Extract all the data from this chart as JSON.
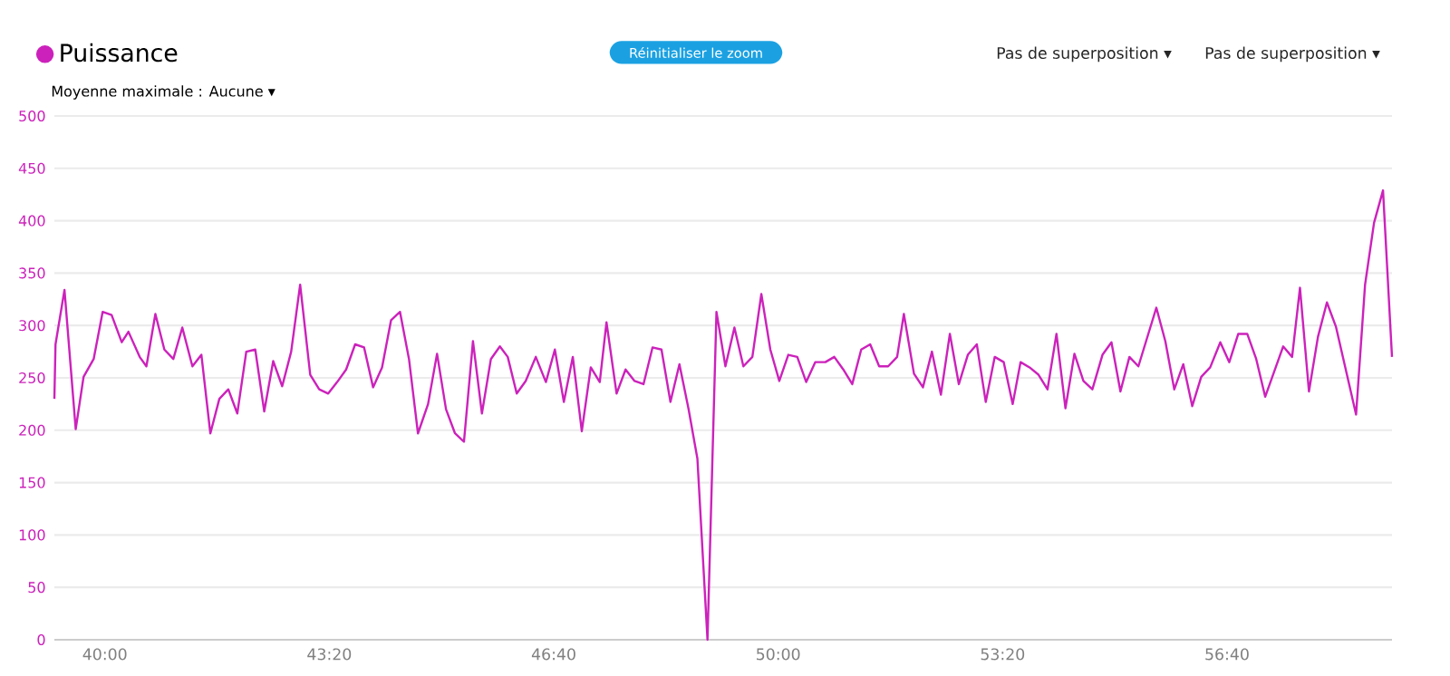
{
  "chart_data": {
    "type": "line",
    "legend": "top left",
    "grid": "y",
    "marker": "none",
    "line_style": "solid",
    "annotations": [
      "Réinitialiser le zoom",
      "Pas de superposition ▾",
      "Pas de superposition ▾",
      "Moyenne maximale : Aucune ▾"
    ],
    "xlim": [
      2355,
      3547
    ],
    "ylim": [
      0,
      500
    ],
    "xticks": [
      {
        "value": 2400,
        "label": "40:00"
      },
      {
        "value": 2600,
        "label": "43:20"
      },
      {
        "value": 2800,
        "label": "46:40"
      },
      {
        "value": 3000,
        "label": "50:00"
      },
      {
        "value": 3200,
        "label": "53:20"
      },
      {
        "value": 3400,
        "label": "56:40"
      }
    ],
    "yticks": [
      0,
      50,
      100,
      150,
      200,
      250,
      300,
      350,
      400,
      450,
      500
    ],
    "series": [
      {
        "name": "Puissance",
        "color": "#cc22bb",
        "x": [
          2355,
          2356,
          2364,
          2374,
          2381,
          2390,
          2398,
          2406,
          2415,
          2421,
          2431,
          2437,
          2445,
          2453,
          2461,
          2469,
          2478,
          2486,
          2494,
          2502,
          2510,
          2518,
          2526,
          2534,
          2542,
          2550,
          2558,
          2566,
          2574,
          2583,
          2591,
          2599,
          2607,
          2615,
          2623,
          2631,
          2639,
          2647,
          2655,
          2663,
          2671,
          2679,
          2688,
          2696,
          2704,
          2712,
          2720,
          2728,
          2736,
          2744,
          2752,
          2759,
          2767,
          2775,
          2784,
          2793,
          2801,
          2809,
          2817,
          2825,
          2833,
          2841,
          2847,
          2856,
          2864,
          2872,
          2880,
          2888,
          2896,
          2904,
          2912,
          2920,
          2928,
          2937,
          2945,
          2953,
          2961,
          2969,
          2977,
          2985,
          2993,
          3001,
          3009,
          3017,
          3025,
          3033,
          3042,
          3050,
          3058,
          3066,
          3074,
          3082,
          3090,
          3098,
          3106,
          3112,
          3121,
          3129,
          3137,
          3145,
          3153,
          3161,
          3169,
          3177,
          3185,
          3193,
          3201,
          3209,
          3216,
          3224,
          3232,
          3240,
          3248,
          3256,
          3264,
          3272,
          3280,
          3289,
          3297,
          3305,
          3313,
          3321,
          3337,
          3345,
          3353,
          3361,
          3369,
          3377,
          3385,
          3394,
          3402,
          3410,
          3418,
          3426,
          3434,
          3442,
          3450,
          3458,
          3465,
          3473,
          3481,
          3489,
          3497,
          3515,
          3523,
          3531,
          3539,
          3547
        ],
        "values": [
          230,
          282,
          334,
          201,
          251,
          268,
          313,
          310,
          284,
          294,
          270,
          261,
          311,
          277,
          268,
          298,
          261,
          272,
          197,
          230,
          239,
          216,
          275,
          277,
          218,
          266,
          242,
          275,
          339,
          253,
          239,
          235,
          246,
          258,
          282,
          279,
          241,
          260,
          305,
          313,
          268,
          197,
          225,
          273,
          220,
          197,
          189,
          285,
          216,
          268,
          280,
          270,
          235,
          247,
          270,
          246,
          277,
          227,
          270,
          199,
          260,
          246,
          303,
          235,
          258,
          247,
          244,
          279,
          277,
          227,
          263,
          221,
          173,
          0,
          313,
          261,
          298,
          261,
          270,
          330,
          277,
          247,
          272,
          270,
          246,
          265,
          265,
          270,
          258,
          244,
          277,
          282,
          261,
          261,
          270,
          311,
          254,
          241,
          275,
          234,
          292,
          244,
          272,
          282,
          227,
          270,
          265,
          225,
          265,
          260,
          253,
          239,
          292,
          221,
          273,
          247,
          239,
          272,
          284,
          237,
          270,
          261,
          317,
          285,
          239,
          263,
          223,
          251,
          260,
          284,
          265,
          292,
          292,
          268,
          232,
          256,
          280,
          270,
          336,
          237,
          289,
          322,
          299,
          215,
          339,
          398,
          429,
          270
        ]
      }
    ]
  }
}
